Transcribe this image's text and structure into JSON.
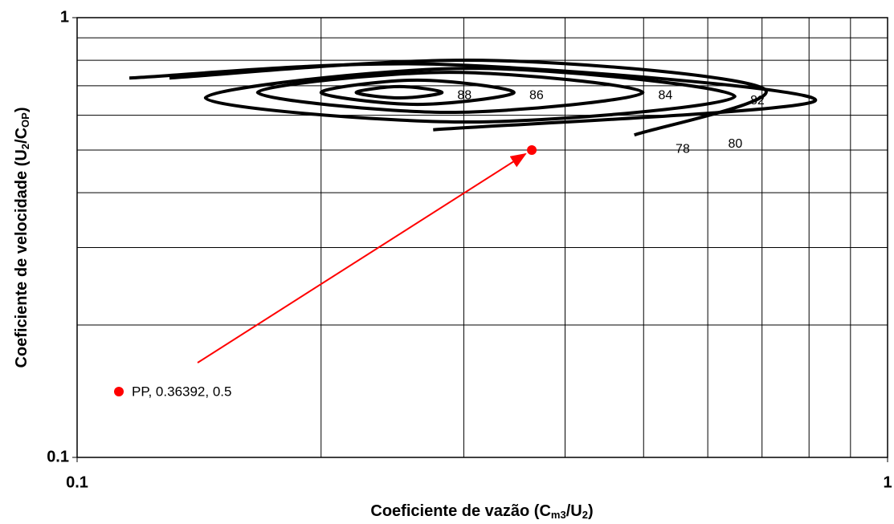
{
  "chart_data": {
    "type": "scatter",
    "log_x": true,
    "log_y": true,
    "minor_grid": true,
    "xlim": [
      0.1,
      1
    ],
    "ylim": [
      0.1,
      1
    ],
    "xticks": [
      0.1,
      1
    ],
    "yticks": [
      0.1,
      1
    ],
    "x_label": [
      {
        "text": "Coeficiente de vazão (C"
      },
      {
        "text": "m3",
        "sub": true
      },
      {
        "text": "/U"
      },
      {
        "text": "2",
        "sub": true
      },
      {
        "text": ")"
      }
    ],
    "y_label": [
      {
        "text": "Coeficiente de velocidade (U"
      },
      {
        "text": "2",
        "sub": true
      },
      {
        "text": "/C"
      },
      {
        "text": "OP",
        "sub": true
      },
      {
        "text": ")"
      }
    ],
    "series": [
      {
        "color": "#ff0000",
        "x": [
          0.36392
        ],
        "y": [
          0.5
        ]
      }
    ],
    "annotations": [
      {
        "text": "PP, 0.36392, 0.5"
      }
    ],
    "contours": [
      {
        "level": 88,
        "closed": true,
        "x": [
          0.221,
          0.25,
          0.282,
          0.25
        ],
        "y": [
          0.676,
          0.697,
          0.676,
          0.657
        ]
      },
      {
        "level": 86,
        "closed": true,
        "x": [
          0.2,
          0.263,
          0.346,
          0.263
        ],
        "y": [
          0.676,
          0.721,
          0.676,
          0.635
        ]
      },
      {
        "level": 84,
        "closed": true,
        "x": [
          0.167,
          0.288,
          0.499,
          0.288
        ],
        "y": [
          0.676,
          0.751,
          0.676,
          0.609
        ]
      },
      {
        "level": 82,
        "closed": true,
        "x": [
          0.144,
          0.305,
          0.648,
          0.305
        ],
        "y": [
          0.657,
          0.767,
          0.662,
          0.579
        ]
      },
      {
        "level": 80,
        "closed": false,
        "x": [
          0.116,
          0.282,
          0.815,
          0.275
        ],
        "y": [
          0.729,
          0.783,
          0.649,
          0.556
        ]
      },
      {
        "level": 78,
        "closed": false,
        "x": [
          0.13,
          0.316,
          0.702,
          0.487
        ],
        "y": [
          0.729,
          0.8,
          0.691,
          0.541
        ]
      }
    ]
  }
}
